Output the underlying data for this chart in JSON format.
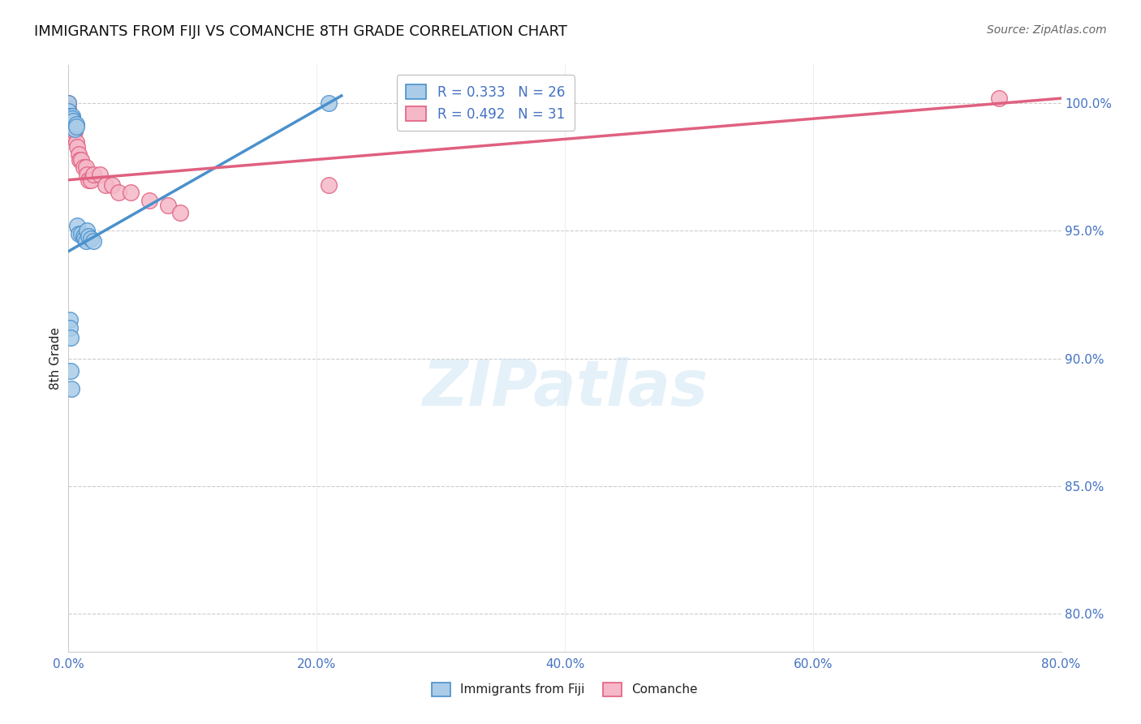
{
  "title": "IMMIGRANTS FROM FIJI VS COMANCHE 8TH GRADE CORRELATION CHART",
  "source": "Source: ZipAtlas.com",
  "xlim": [
    0.0,
    80.0
  ],
  "ylim": [
    78.5,
    101.5
  ],
  "xlabel_tick_vals": [
    0.0,
    20.0,
    40.0,
    60.0,
    80.0
  ],
  "xlabel_ticks": [
    "0.0%",
    "20.0%",
    "40.0%",
    "60.0%",
    "80.0%"
  ],
  "ylabel_tick_vals": [
    80.0,
    85.0,
    90.0,
    95.0,
    100.0
  ],
  "ylabel_ticks": [
    "80.0%",
    "85.0%",
    "90.0%",
    "95.0%",
    "100.0%"
  ],
  "ylabel_label": "8th Grade",
  "watermark": "ZIPatlas",
  "fiji_points_x": [
    0.0,
    0.0,
    0.0,
    0.0,
    0.3,
    0.3,
    0.4,
    0.5,
    0.6,
    0.6,
    0.7,
    0.8,
    1.0,
    1.2,
    1.3,
    1.4,
    1.5,
    1.6,
    1.8,
    2.0,
    0.1,
    0.1,
    0.15,
    0.2,
    0.25,
    21.0
  ],
  "fiji_points_y": [
    100.0,
    99.7,
    99.5,
    99.5,
    99.5,
    99.4,
    99.3,
    99.0,
    99.2,
    99.1,
    95.2,
    94.9,
    94.9,
    94.8,
    94.7,
    94.6,
    95.0,
    94.8,
    94.7,
    94.6,
    91.5,
    91.2,
    90.8,
    89.5,
    88.8,
    100.0
  ],
  "comanche_points_x": [
    0.0,
    0.0,
    0.0,
    0.0,
    0.0,
    0.2,
    0.3,
    0.3,
    0.4,
    0.5,
    0.6,
    0.7,
    0.8,
    0.9,
    1.0,
    1.2,
    1.4,
    1.5,
    1.6,
    1.8,
    2.0,
    2.5,
    3.0,
    3.5,
    4.0,
    5.0,
    6.5,
    8.0,
    9.0,
    21.0,
    75.0
  ],
  "comanche_points_y": [
    100.0,
    99.8,
    99.7,
    99.5,
    99.5,
    99.2,
    99.0,
    99.3,
    98.8,
    98.9,
    98.5,
    98.3,
    98.0,
    97.8,
    97.8,
    97.5,
    97.5,
    97.2,
    97.0,
    97.0,
    97.2,
    97.2,
    96.8,
    96.8,
    96.5,
    96.5,
    96.2,
    96.0,
    95.7,
    96.8,
    100.2
  ],
  "fiji_trend_x": [
    0.0,
    22.0
  ],
  "fiji_trend_y": [
    94.2,
    100.3
  ],
  "comanche_trend_x": [
    0.0,
    80.0
  ],
  "comanche_trend_y": [
    97.0,
    100.2
  ],
  "fiji_color": "#aacce8",
  "fiji_edge_color": "#4a90cc",
  "comanche_color": "#f5b8c8",
  "comanche_edge_color": "#e06080",
  "grid_color": "#cccccc",
  "tick_color": "#4472c4",
  "title_color": "#111111",
  "source_color": "#666666",
  "background": "#ffffff",
  "legend1_label1": "R = 0.333   N = 26",
  "legend1_label2": "R = 0.492   N = 31",
  "legend2_label1": "Immigrants from Fiji",
  "legend2_label2": "Comanche"
}
